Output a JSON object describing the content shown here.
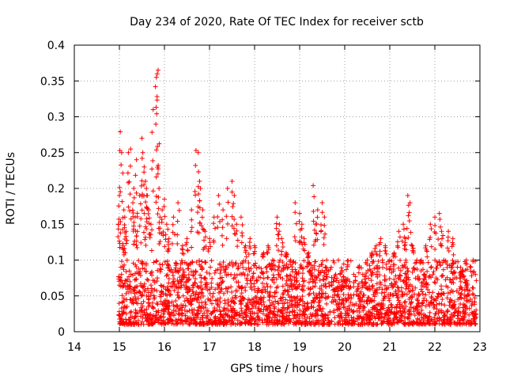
{
  "chart_data": {
    "type": "scatter",
    "title": "Day 234 of 2020, Rate Of TEC Index for receiver sctb",
    "xlabel": "GPS time / hours",
    "ylabel": "ROTI / TECUs",
    "xlim": [
      14,
      23
    ],
    "ylim": [
      0,
      0.4
    ],
    "xticks": [
      "14",
      "15",
      "16",
      "17",
      "18",
      "19",
      "20",
      "21",
      "22",
      "23"
    ],
    "yticks": [
      "0",
      "0.05",
      "0.1",
      "0.15",
      "0.2",
      "0.25",
      "0.3",
      "0.35",
      "0.4"
    ],
    "grid": true,
    "marker": "plus",
    "series": [
      {
        "name": "ROTI",
        "color": "#ff0000",
        "x": [
          14.98,
          15.0,
          15.02,
          15.05,
          15.08,
          15.1,
          15.12,
          15.15,
          15.2,
          15.25,
          15.3,
          15.32,
          15.35,
          15.38,
          15.4,
          15.45,
          15.5,
          15.52,
          15.55,
          15.58,
          15.6,
          15.62,
          15.65,
          15.7,
          15.75,
          15.8,
          15.82,
          15.84,
          15.86,
          15.88,
          15.9,
          15.95,
          16.0,
          16.05,
          16.1,
          16.2,
          16.3,
          16.4,
          16.5,
          16.6,
          16.7,
          16.75,
          16.78,
          16.8,
          16.85,
          16.9,
          17.0,
          17.1,
          17.2,
          17.3,
          17.4,
          17.5,
          17.55,
          17.6,
          17.7,
          17.8,
          17.9,
          18.0,
          18.1,
          18.2,
          18.3,
          18.4,
          18.5,
          18.55,
          18.6,
          18.7,
          18.8,
          18.9,
          19.0,
          19.05,
          19.1,
          19.2,
          19.3,
          19.35,
          19.4,
          19.5,
          19.55,
          19.6,
          19.7,
          19.8,
          19.9,
          20.0,
          20.1,
          20.2,
          20.3,
          20.4,
          20.5,
          20.6,
          20.7,
          20.8,
          20.9,
          21.0,
          21.1,
          21.2,
          21.3,
          21.35,
          21.4,
          21.45,
          21.5,
          21.6,
          21.7,
          21.8,
          21.9,
          22.0,
          22.1,
          22.15,
          22.2,
          22.3,
          22.4,
          22.5,
          22.6,
          22.7,
          22.8,
          22.85,
          22.9
        ],
        "y": [
          0.15,
          0.19,
          0.279,
          0.25,
          0.12,
          0.17,
          0.16,
          0.14,
          0.25,
          0.255,
          0.18,
          0.2,
          0.16,
          0.24,
          0.14,
          0.19,
          0.27,
          0.25,
          0.23,
          0.21,
          0.2,
          0.19,
          0.17,
          0.15,
          0.31,
          0.342,
          0.355,
          0.36,
          0.365,
          0.2,
          0.16,
          0.17,
          0.185,
          0.15,
          0.13,
          0.16,
          0.18,
          0.12,
          0.13,
          0.17,
          0.253,
          0.25,
          0.21,
          0.2,
          0.17,
          0.14,
          0.13,
          0.16,
          0.19,
          0.17,
          0.2,
          0.21,
          0.19,
          0.15,
          0.16,
          0.12,
          0.13,
          0.12,
          0.09,
          0.11,
          0.12,
          0.1,
          0.16,
          0.15,
          0.13,
          0.11,
          0.1,
          0.18,
          0.165,
          0.15,
          0.13,
          0.11,
          0.204,
          0.15,
          0.17,
          0.18,
          0.16,
          0.1,
          0.09,
          0.08,
          0.08,
          0.07,
          0.06,
          0.08,
          0.09,
          0.08,
          0.1,
          0.11,
          0.12,
          0.13,
          0.12,
          0.1,
          0.11,
          0.14,
          0.15,
          0.13,
          0.19,
          0.18,
          0.12,
          0.1,
          0.1,
          0.12,
          0.15,
          0.16,
          0.165,
          0.14,
          0.1,
          0.14,
          0.13,
          0.09,
          0.08,
          0.1,
          0.09,
          0.1,
          0.08
        ],
        "baseline_band": [
          0.01,
          0.1
        ],
        "baseline_x_range": [
          14.98,
          22.92
        ],
        "baseline_count": 2600
      }
    ]
  }
}
